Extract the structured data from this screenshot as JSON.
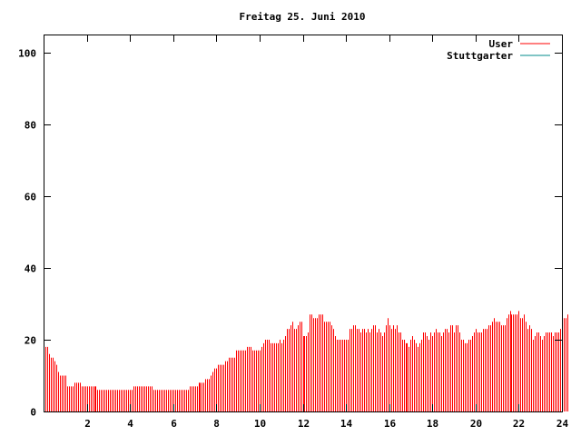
{
  "chart_data": {
    "type": "bar",
    "title": "Freitag 25. Juni 2010",
    "xlabel": "",
    "ylabel": "",
    "xlim": [
      0,
      24
    ],
    "ylim": [
      0,
      105
    ],
    "xticks": [
      2,
      4,
      6,
      8,
      10,
      12,
      14,
      16,
      18,
      20,
      22,
      24
    ],
    "yticks": [
      0,
      20,
      40,
      60,
      80,
      100
    ],
    "grid": false,
    "legend_position": "top-right",
    "series": [
      {
        "name": "User",
        "color": "#ff0000",
        "step_minutes": 5,
        "values": [
          20,
          18,
          18,
          16,
          15,
          15,
          14,
          13,
          11,
          10,
          10,
          10,
          10,
          7,
          7,
          7,
          7,
          8,
          8,
          8,
          8,
          7,
          7,
          7,
          7,
          7,
          7,
          7,
          7,
          7,
          6,
          6,
          6,
          6,
          6,
          6,
          6,
          6,
          6,
          6,
          6,
          6,
          6,
          6,
          6,
          6,
          6,
          6,
          6,
          6,
          7,
          7,
          7,
          7,
          7,
          7,
          7,
          7,
          7,
          7,
          7,
          6,
          6,
          6,
          6,
          6,
          6,
          6,
          6,
          6,
          6,
          6,
          6,
          6,
          6,
          6,
          6,
          6,
          6,
          6,
          6,
          7,
          7,
          7,
          7,
          7,
          8,
          8,
          8,
          8,
          9,
          9,
          9,
          10,
          11,
          12,
          12,
          13,
          13,
          13,
          13,
          14,
          14,
          15,
          15,
          15,
          15,
          17,
          17,
          17,
          17,
          17,
          17,
          18,
          18,
          18,
          17,
          17,
          17,
          17,
          17,
          18,
          19,
          20,
          20,
          20,
          19,
          19,
          19,
          19,
          19,
          20,
          19,
          20,
          21,
          23,
          23,
          24,
          25,
          23,
          23,
          24,
          25,
          25,
          21,
          21,
          21,
          22,
          27,
          27,
          26,
          26,
          26,
          27,
          27,
          27,
          25,
          25,
          25,
          25,
          24,
          23,
          21,
          20,
          20,
          20,
          20,
          20,
          20,
          20,
          23,
          23,
          24,
          24,
          23,
          23,
          22,
          23,
          23,
          22,
          23,
          22,
          23,
          24,
          24,
          22,
          23,
          22,
          21,
          22,
          24,
          26,
          24,
          23,
          24,
          23,
          24,
          22,
          22,
          20,
          20,
          19,
          19,
          18,
          20,
          21,
          20,
          19,
          18,
          19,
          20,
          22,
          22,
          21,
          20,
          22,
          21,
          22,
          23,
          22,
          22,
          21,
          22,
          23,
          23,
          22,
          24,
          24,
          22,
          24,
          24,
          22,
          20,
          20,
          19,
          19,
          20,
          20,
          21,
          22,
          23,
          22,
          22,
          22,
          23,
          23,
          23,
          24,
          24,
          25,
          26,
          25,
          25,
          25,
          24,
          24,
          24,
          26,
          27,
          28,
          27,
          27,
          27,
          27,
          28,
          26,
          26,
          27,
          25,
          23,
          24,
          23,
          20,
          21,
          22,
          22,
          21,
          20,
          21,
          22,
          22,
          22,
          22,
          21,
          22,
          22,
          22,
          23,
          24,
          26,
          26,
          27
        ]
      },
      {
        "name": "Stuttgarter",
        "color": "#008b8b",
        "step_minutes": 5,
        "values": []
      }
    ]
  }
}
